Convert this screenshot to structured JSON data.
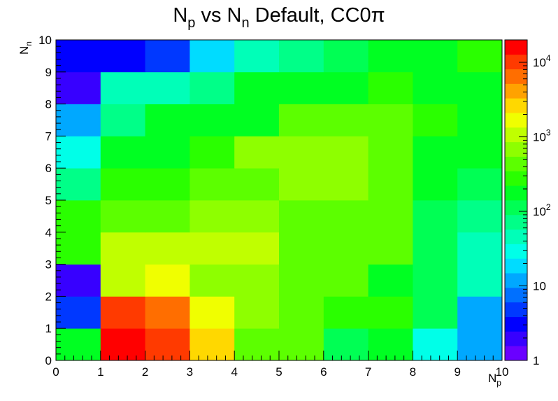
{
  "chart_data": {
    "type": "heatmap",
    "title": "N",
    "title_sub1": "p",
    "title_mid": " vs N",
    "title_sub2": "n",
    "title_rest": " Default, CC0π",
    "xlabel": "N",
    "xlabel_sub": "p",
    "ylabel": "N",
    "ylabel_sub": "n",
    "xlim": [
      0,
      10
    ],
    "ylim": [
      0,
      10
    ],
    "x_ticks": [
      "0",
      "1",
      "2",
      "3",
      "4",
      "5",
      "6",
      "7",
      "8",
      "9",
      "10"
    ],
    "y_ticks": [
      "0",
      "1",
      "2",
      "3",
      "4",
      "5",
      "6",
      "7",
      "8",
      "9",
      "10"
    ],
    "z_scale": "log",
    "zlim": [
      1,
      20000
    ],
    "z_ticks": [
      {
        "value": 1,
        "label": "1",
        "exp": ""
      },
      {
        "value": 10,
        "label": "10",
        "exp": ""
      },
      {
        "value": 100,
        "label": "10",
        "exp": "2"
      },
      {
        "value": 1000,
        "label": "10",
        "exp": "3"
      },
      {
        "value": 10000,
        "label": "10",
        "exp": "4"
      }
    ],
    "palette": [
      "#6a00ff",
      "#3700ff",
      "#0000ff",
      "#0038ff",
      "#0070ff",
      "#00a8ff",
      "#00dcff",
      "#00ffe8",
      "#00ffb8",
      "#00ff88",
      "#00ff54",
      "#00ff22",
      "#2aff00",
      "#5cff00",
      "#8eff00",
      "#c0ff00",
      "#f0ff00",
      "#ffd800",
      "#ffa200",
      "#ff6e00",
      "#ff3a00",
      "#ff0000"
    ],
    "cells": [
      [
        150,
        20000,
        12000,
        2500,
        400,
        350,
        140,
        150,
        35,
        14
      ],
      [
        5,
        12000,
        6000,
        1500,
        700,
        500,
        230,
        230,
        130,
        14
      ],
      [
        1.8,
        1100,
        1800,
        700,
        700,
        500,
        400,
        150,
        130,
        40
      ],
      [
        300,
        900,
        900,
        900,
        900,
        500,
        400,
        400,
        130,
        40
      ],
      [
        300,
        350,
        350,
        800,
        800,
        500,
        500,
        400,
        130,
        70
      ],
      [
        70,
        300,
        300,
        400,
        400,
        550,
        550,
        400,
        200,
        100
      ],
      [
        35,
        150,
        200,
        300,
        550,
        550,
        550,
        400,
        200,
        150
      ],
      [
        12,
        70,
        150,
        200,
        200,
        400,
        400,
        400,
        250,
        200
      ],
      [
        2,
        40,
        40,
        70,
        150,
        200,
        200,
        300,
        200,
        200
      ],
      [
        3,
        3,
        6,
        18,
        40,
        80,
        120,
        150,
        200,
        250
      ]
    ]
  }
}
